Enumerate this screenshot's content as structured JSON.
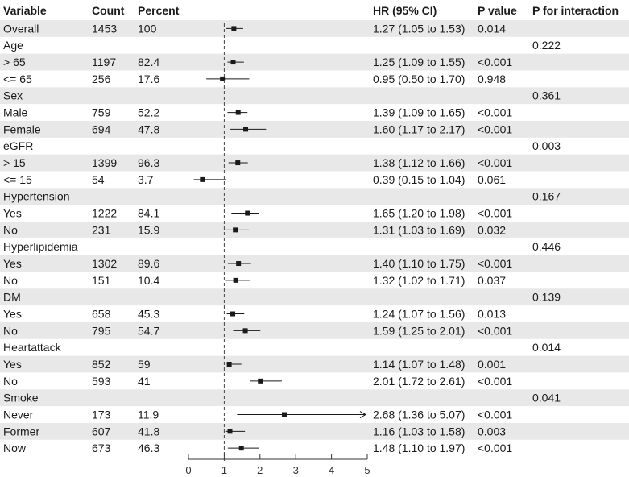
{
  "chart_data": {
    "type": "forest",
    "title": "",
    "columns": {
      "variable": "Variable",
      "count": "Count",
      "percent": "Percent",
      "hr": "HR (95% CI)",
      "pvalue": "P value",
      "pinteraction": "P for interaction"
    },
    "xaxis": {
      "min": 0,
      "max": 5,
      "ticks": [
        "0",
        "1",
        "2",
        "3",
        "4",
        "5"
      ],
      "reference_line": 1
    },
    "rows": [
      {
        "label": "Overall",
        "count": "1453",
        "percent": "100",
        "hr": 1.27,
        "lo": 1.05,
        "hi": 1.53,
        "hr_text": "1.27 (1.05 to 1.53)",
        "p": "0.014",
        "pint": ""
      },
      {
        "label": "Age",
        "group": true,
        "pint": "0.222"
      },
      {
        "label": "> 65",
        "count": "1197",
        "percent": "82.4",
        "hr": 1.25,
        "lo": 1.09,
        "hi": 1.55,
        "hr_text": "1.25 (1.09 to 1.55)",
        "p": "<0.001",
        "pint": ""
      },
      {
        "label": "<= 65",
        "count": "256",
        "percent": "17.6",
        "hr": 0.95,
        "lo": 0.5,
        "hi": 1.7,
        "hr_text": "0.95 (0.50 to 1.70)",
        "p": "0.948",
        "pint": ""
      },
      {
        "label": "Sex",
        "group": true,
        "pint": "0.361"
      },
      {
        "label": "Male",
        "count": "759",
        "percent": "52.2",
        "hr": 1.39,
        "lo": 1.09,
        "hi": 1.65,
        "hr_text": "1.39 (1.09 to 1.65)",
        "p": "<0.001",
        "pint": ""
      },
      {
        "label": "Female",
        "count": "694",
        "percent": "47.8",
        "hr": 1.6,
        "lo": 1.17,
        "hi": 2.17,
        "hr_text": "1.60 (1.17 to 2.17)",
        "p": "<0.001",
        "pint": ""
      },
      {
        "label": "eGFR",
        "group": true,
        "pint": "0.003"
      },
      {
        "label": "> 15",
        "count": "1399",
        "percent": "96.3",
        "hr": 1.38,
        "lo": 1.12,
        "hi": 1.66,
        "hr_text": "1.38 (1.12 to 1.66)",
        "p": "<0.001",
        "pint": ""
      },
      {
        "label": "<= 15",
        "count": "54",
        "percent": "3.7",
        "hr": 0.39,
        "lo": 0.15,
        "hi": 1.04,
        "hr_text": "0.39 (0.15 to 1.04)",
        "p": "0.061",
        "pint": ""
      },
      {
        "label": "Hypertension",
        "group": true,
        "pint": "0.167"
      },
      {
        "label": "Yes",
        "count": "1222",
        "percent": "84.1",
        "hr": 1.65,
        "lo": 1.2,
        "hi": 1.98,
        "hr_text": "1.65 (1.20 to 1.98)",
        "p": "<0.001",
        "pint": ""
      },
      {
        "label": "No",
        "count": "231",
        "percent": "15.9",
        "hr": 1.31,
        "lo": 1.03,
        "hi": 1.69,
        "hr_text": "1.31 (1.03 to 1.69)",
        "p": "0.032",
        "pint": ""
      },
      {
        "label": "Hyperlipidemia",
        "group": true,
        "pint": "0.446"
      },
      {
        "label": "Yes",
        "count": "1302",
        "percent": "89.6",
        "hr": 1.4,
        "lo": 1.1,
        "hi": 1.75,
        "hr_text": "1.40 (1.10 to 1.75)",
        "p": "<0.001",
        "pint": ""
      },
      {
        "label": "No",
        "count": "151",
        "percent": "10.4",
        "hr": 1.32,
        "lo": 1.02,
        "hi": 1.71,
        "hr_text": "1.32 (1.02 to 1.71)",
        "p": "0.037",
        "pint": ""
      },
      {
        "label": "DM",
        "group": true,
        "pint": "0.139"
      },
      {
        "label": "Yes",
        "count": "658",
        "percent": "45.3",
        "hr": 1.24,
        "lo": 1.07,
        "hi": 1.56,
        "hr_text": "1.24 (1.07 to 1.56)",
        "p": "0.013",
        "pint": ""
      },
      {
        "label": "No",
        "count": "795",
        "percent": "54.7",
        "hr": 1.59,
        "lo": 1.25,
        "hi": 2.01,
        "hr_text": "1.59 (1.25 to 2.01)",
        "p": "<0.001",
        "pint": ""
      },
      {
        "label": "Heartattack",
        "group": true,
        "pint": "0.014"
      },
      {
        "label": "Yes",
        "count": "852",
        "percent": "59",
        "hr": 1.14,
        "lo": 1.07,
        "hi": 1.48,
        "hr_text": "1.14 (1.07 to 1.48)",
        "p": "0.001",
        "pint": ""
      },
      {
        "label": "No",
        "count": "593",
        "percent": "41",
        "hr": 2.01,
        "lo": 1.72,
        "hi": 2.61,
        "hr_text": "2.01 (1.72 to 2.61)",
        "p": "<0.001",
        "pint": ""
      },
      {
        "label": "Smoke",
        "group": true,
        "pint": "0.041"
      },
      {
        "label": "Never",
        "count": "173",
        "percent": "11.9",
        "hr": 2.68,
        "lo": 1.36,
        "hi": 5.07,
        "hr_text": "2.68 (1.36 to 5.07)",
        "p": "<0.001",
        "pint": "",
        "arrow": true
      },
      {
        "label": "Former",
        "count": "607",
        "percent": "41.8",
        "hr": 1.16,
        "lo": 1.03,
        "hi": 1.58,
        "hr_text": "1.16 (1.03 to 1.58)",
        "p": "0.003",
        "pint": ""
      },
      {
        "label": "Now",
        "count": "673",
        "percent": "46.3",
        "hr": 1.48,
        "lo": 1.1,
        "hi": 1.97,
        "hr_text": "1.48 (1.10 to 1.97)",
        "p": "<0.001",
        "pint": ""
      }
    ],
    "colors": {
      "stripe": "#e8e8e8",
      "mark": "#1a1a1a",
      "refline": "#444444",
      "axis": "#333333"
    }
  }
}
